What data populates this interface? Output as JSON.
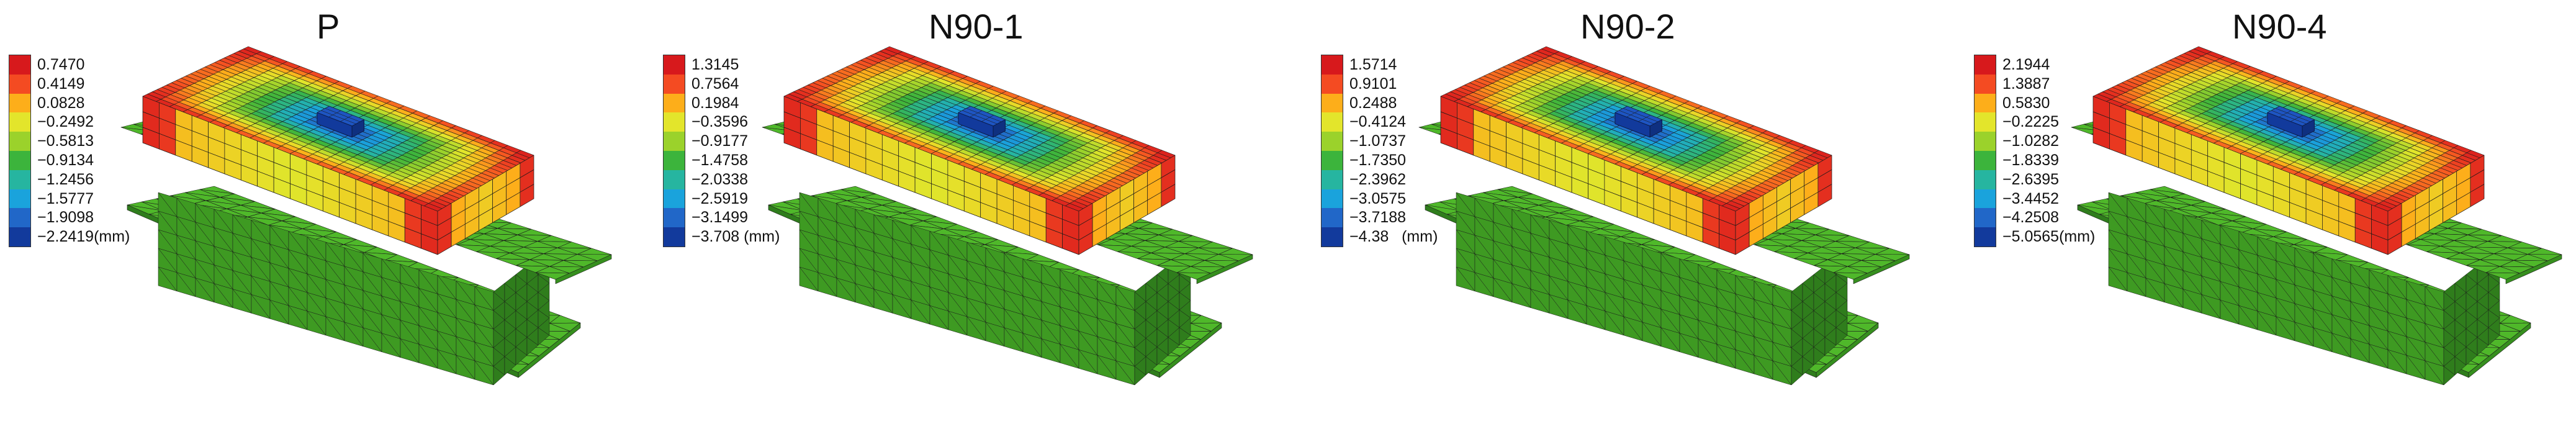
{
  "legend_colors": [
    "#d7191c",
    "#f44b22",
    "#fdae1a",
    "#e3e52b",
    "#9bd22b",
    "#3cb43c",
    "#26b5a0",
    "#1aa3dc",
    "#2167c8",
    "#123a9c"
  ],
  "panels": [
    {
      "title": "P",
      "legend_labels": [
        "0.7470",
        "0.4149",
        "0.0828",
        "−0.2492",
        "−0.5813",
        "−0.9134",
        "−1.2456",
        "−1.5777",
        "−1.9098",
        "−2.2419"
      ],
      "unit": "(mm)"
    },
    {
      "title": "N90-1",
      "legend_labels": [
        "1.3145",
        "0.7564",
        "0.1984",
        "−0.3596",
        "−0.9177",
        "−1.4758",
        "−2.0338",
        "−2.5919",
        "−3.1499",
        "−3.708"
      ],
      "unit": "(mm)"
    },
    {
      "title": "N90-2",
      "legend_labels": [
        "1.5714",
        "0.9101",
        "0.2488",
        "−0.4124",
        "−1.0737",
        "−1.7350",
        "−2.3962",
        "−3.0575",
        "−3.7188",
        "−4.38"
      ],
      "unit": "(mm)"
    },
    {
      "title": "N90-4",
      "legend_labels": [
        "2.1944",
        "1.3887",
        "0.5830",
        "−0.2225",
        "−1.0282",
        "−1.8339",
        "−2.6395",
        "−3.4452",
        "−4.2508",
        "−5.0565"
      ],
      "unit": "(mm)"
    }
  ]
}
